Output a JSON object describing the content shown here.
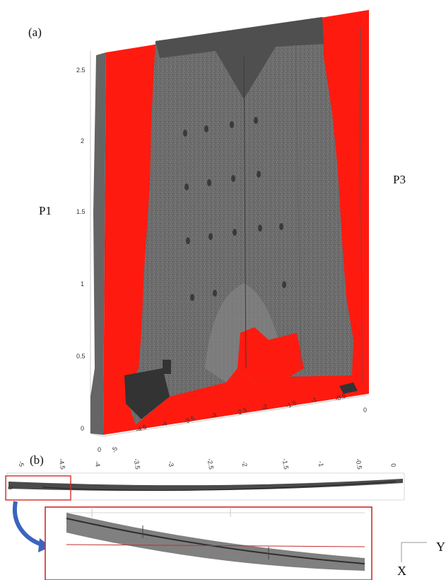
{
  "figure": {
    "panel_a_label": "(a)",
    "panel_b_label": "(b)",
    "label_p1": "P1",
    "label_p3": "P3",
    "axis_x_label": "X",
    "axis_y_label": "Y",
    "vertical_ticks": [
      "2.5",
      "2",
      "1.5",
      "1",
      "0.5",
      "0"
    ],
    "bottom_ticks": [
      "0",
      "-5",
      "-4.5",
      "-4",
      "-3.5",
      "-3",
      "-2.5",
      "-2",
      "-1.5",
      "-1",
      "-0.5",
      "0"
    ],
    "panel_b_ticks": [
      "-5",
      "-4.5",
      "-4",
      "-3.5",
      "-3",
      "-2.5",
      "-2",
      "-1.5",
      "-1",
      "-0.5",
      "0"
    ],
    "panel_b_side_tick": "0",
    "colors": {
      "plane": "#ff1a10",
      "cloud": "#6e6e6e",
      "cloud_dark": "#555555",
      "highlight_box": "#d42a2a",
      "arrow": "#3a64c0"
    }
  }
}
